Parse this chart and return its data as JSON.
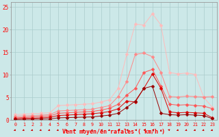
{
  "x": [
    0,
    1,
    2,
    3,
    4,
    5,
    6,
    7,
    8,
    9,
    10,
    11,
    12,
    13,
    14,
    15,
    16,
    17,
    18,
    19,
    20,
    21,
    22,
    23
  ],
  "line1": [
    1.2,
    1.3,
    1.4,
    1.5,
    1.6,
    3.2,
    3.3,
    3.4,
    3.5,
    3.6,
    4.0,
    4.5,
    7.0,
    14.5,
    21.2,
    21.0,
    23.5,
    21.0,
    10.5,
    10.2,
    10.4,
    10.1,
    5.0,
    2.8
  ],
  "line2": [
    0.8,
    0.9,
    1.0,
    1.1,
    1.2,
    2.0,
    2.1,
    2.2,
    2.3,
    2.4,
    2.8,
    3.2,
    5.2,
    8.5,
    14.5,
    14.8,
    14.0,
    10.5,
    5.2,
    5.1,
    5.3,
    5.2,
    5.1,
    5.2
  ],
  "line3": [
    0.5,
    0.6,
    0.7,
    0.8,
    0.9,
    1.5,
    1.6,
    1.7,
    1.8,
    1.9,
    2.2,
    2.6,
    3.5,
    5.5,
    7.0,
    10.5,
    11.2,
    7.5,
    3.5,
    3.3,
    3.4,
    3.2,
    3.1,
    2.5
  ],
  "line4": [
    0.3,
    0.4,
    0.4,
    0.5,
    0.6,
    1.0,
    1.1,
    1.2,
    1.3,
    1.4,
    1.6,
    1.9,
    2.5,
    4.2,
    4.0,
    7.0,
    10.2,
    7.0,
    1.8,
    1.6,
    1.7,
    1.6,
    1.5,
    0.5
  ],
  "line5": [
    0.15,
    0.18,
    0.2,
    0.22,
    0.25,
    0.5,
    0.55,
    0.6,
    0.65,
    0.7,
    0.9,
    1.1,
    1.5,
    2.8,
    4.2,
    7.0,
    7.5,
    1.5,
    1.2,
    1.1,
    1.2,
    1.1,
    1.0,
    0.3
  ],
  "arrow_angles": [
    225,
    225,
    225,
    225,
    225,
    225,
    225,
    225,
    225,
    225,
    270,
    225,
    270,
    270,
    270,
    270,
    270,
    0,
    315,
    225,
    225,
    225,
    225,
    225
  ],
  "bg_color": "#cce8e8",
  "grid_color": "#aacccc",
  "line1_color": "#ffbbbb",
  "line2_color": "#ff8888",
  "line3_color": "#ff5555",
  "line4_color": "#dd0000",
  "line5_color": "#990000",
  "axis_color": "#cc0000",
  "xlabel": "Vent moyen/en rafales ( km/h )",
  "ylim": [
    0,
    26
  ],
  "xlim": [
    -0.5,
    23.5
  ],
  "yticks": [
    0,
    5,
    10,
    15,
    20,
    25
  ],
  "xticks": [
    0,
    1,
    2,
    3,
    4,
    5,
    6,
    7,
    8,
    9,
    10,
    11,
    12,
    13,
    14,
    15,
    16,
    17,
    18,
    19,
    20,
    21,
    22,
    23
  ]
}
